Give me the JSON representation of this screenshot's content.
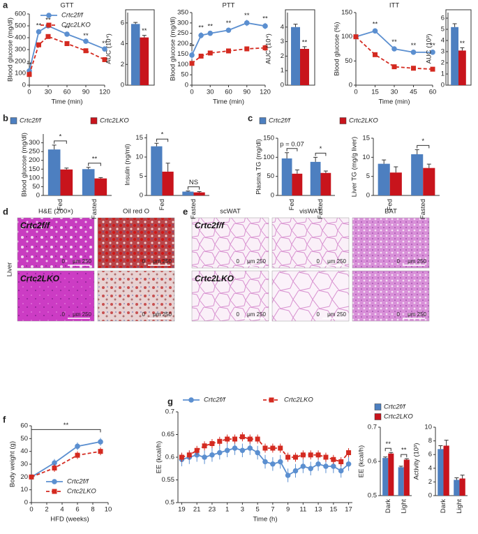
{
  "chart_data": [
    {
      "type": "line",
      "title": "GTT",
      "xlabel": "Time (min)",
      "ylabel": "Blood glucose (mg/dl)",
      "x": [
        0,
        15,
        30,
        60,
        90,
        120
      ],
      "xlim": [
        0,
        120
      ],
      "xticks": [
        0,
        30,
        60,
        90,
        120
      ],
      "ylim": [
        0,
        600
      ],
      "yticks": [
        0,
        100,
        200,
        300,
        400,
        500,
        600
      ],
      "legend": true,
      "series": [
        {
          "name": "Crtc2f/f",
          "color": "#5b8fd0",
          "linestyle": "solid",
          "marker": "circle",
          "values": [
            120,
            450,
            500,
            430,
            370,
            305
          ],
          "errors": [
            15,
            15,
            12,
            12,
            10,
            10
          ]
        },
        {
          "name": "Crtc2LKO",
          "color": "#d42a20",
          "linestyle": "dashed",
          "marker": "square",
          "values": [
            90,
            340,
            410,
            350,
            290,
            215
          ],
          "errors": [
            10,
            12,
            10,
            10,
            10,
            10
          ]
        }
      ],
      "significance": [
        "**",
        "**",
        "**",
        "**",
        "**",
        "**"
      ]
    },
    {
      "type": "bar",
      "ylabel": "AUC (10⁴)",
      "ylim": [
        0,
        7
      ],
      "yticks": [
        0,
        2,
        4,
        6
      ],
      "frame": true,
      "series": [
        {
          "name": "Crtc2f/f",
          "color": "#4d7fc0",
          "values": [
            5.9
          ],
          "errors": [
            0.15
          ]
        },
        {
          "name": "Crtc2LKO",
          "color": "#c8141c",
          "values": [
            4.6
          ],
          "errors": [
            0.2
          ]
        }
      ],
      "significance": [
        "**"
      ]
    },
    {
      "type": "line",
      "title": "PTT",
      "xlabel": "Time (min)",
      "ylabel": "Blood glucose (mg/dl)",
      "x": [
        0,
        15,
        30,
        60,
        90,
        120
      ],
      "xlim": [
        0,
        120
      ],
      "xticks": [
        0,
        30,
        60,
        90,
        120
      ],
      "ylim": [
        0,
        350
      ],
      "yticks": [
        0,
        50,
        100,
        150,
        200,
        250,
        300,
        350
      ],
      "series": [
        {
          "name": "Crtc2f/f",
          "color": "#5b8fd0",
          "linestyle": "solid",
          "marker": "circle",
          "values": [
            145,
            240,
            250,
            265,
            300,
            285
          ],
          "errors": [
            20,
            15,
            12,
            12,
            15,
            15
          ]
        },
        {
          "name": "Crtc2LKO",
          "color": "#d42a20",
          "linestyle": "dashed",
          "marker": "square",
          "values": [
            105,
            140,
            155,
            165,
            175,
            180
          ],
          "errors": [
            10,
            10,
            10,
            10,
            10,
            15
          ]
        }
      ],
      "significance": [
        "**",
        "**",
        "**",
        "**",
        "**",
        "**"
      ]
    },
    {
      "type": "bar",
      "ylabel": "AUC (10⁴)",
      "ylim": [
        0,
        5
      ],
      "yticks": [
        0,
        1,
        2,
        3,
        4
      ],
      "frame": true,
      "series": [
        {
          "name": "Crtc2f/f",
          "color": "#4d7fc0",
          "values": [
            4.0
          ],
          "errors": [
            0.2
          ]
        },
        {
          "name": "Crtc2LKO",
          "color": "#c8141c",
          "values": [
            2.5
          ],
          "errors": [
            0.15
          ]
        }
      ],
      "significance": [
        "**"
      ]
    },
    {
      "type": "line",
      "title": "ITT",
      "xlabel": "Time (min)",
      "ylabel": "Blood glucose (%)",
      "x": [
        0,
        15,
        30,
        45,
        60
      ],
      "xlim": [
        0,
        60
      ],
      "xticks": [
        0,
        15,
        30,
        45,
        60
      ],
      "ylim": [
        0,
        150
      ],
      "yticks": [
        0,
        50,
        100,
        150
      ],
      "series": [
        {
          "name": "Crtc2f/f",
          "color": "#5b8fd0",
          "linestyle": "solid",
          "marker": "circle",
          "values": [
            100,
            112,
            75,
            68,
            68
          ],
          "errors": [
            5,
            5,
            5,
            5,
            5
          ]
        },
        {
          "name": "Crtc2LKO",
          "color": "#d42a20",
          "linestyle": "dashed",
          "marker": "square",
          "values": [
            100,
            63,
            38,
            35,
            33
          ],
          "errors": [
            3,
            3,
            3,
            3,
            3
          ]
        }
      ],
      "significance": [
        null,
        "**",
        "**",
        "**",
        "**"
      ]
    },
    {
      "type": "bar",
      "ylabel": "AUC (10³)",
      "ylim": [
        0,
        6.5
      ],
      "yticks": [
        0,
        1,
        2,
        3,
        4,
        5,
        6
      ],
      "frame": true,
      "series": [
        {
          "name": "Crtc2f/f",
          "color": "#4d7fc0",
          "values": [
            5.2
          ],
          "errors": [
            0.3
          ]
        },
        {
          "name": "Crtc2LKO",
          "color": "#c8141c",
          "values": [
            3.1
          ],
          "errors": [
            0.25
          ]
        }
      ],
      "significance": [
        "**"
      ]
    },
    {
      "type": "bar",
      "ylabel": "Blood glucose (mg/dl)",
      "categories": [
        "Fed",
        "Fasted"
      ],
      "legend": true,
      "ylim": [
        0,
        350
      ],
      "yticks": [
        0,
        50,
        100,
        150,
        200,
        250,
        300
      ],
      "series": [
        {
          "name": "Crtc2f/f",
          "color": "#4d7fc0",
          "values": [
            262,
            150
          ],
          "errors": [
            25,
            10
          ]
        },
        {
          "name": "Crtc2LKO",
          "color": "#c8141c",
          "values": [
            148,
            97
          ],
          "errors": [
            8,
            5
          ]
        }
      ],
      "significance": [
        "*",
        "**"
      ]
    },
    {
      "type": "bar",
      "ylabel": "Insulin (ng/ml)",
      "categories": [
        "Fed",
        "Fasted"
      ],
      "ylim": [
        0,
        16
      ],
      "yticks": [
        0,
        5,
        10,
        15
      ],
      "series": [
        {
          "name": "Crtc2f/f",
          "color": "#4d7fc0",
          "values": [
            12.8,
            1.0
          ],
          "errors": [
            0.8,
            0.15
          ]
        },
        {
          "name": "Crtc2LKO",
          "color": "#c8141c",
          "values": [
            6.2,
            0.8
          ],
          "errors": [
            2.2,
            0.2
          ]
        }
      ],
      "significance": [
        "*",
        "NS"
      ]
    },
    {
      "type": "bar",
      "ylabel": "Plasma TG (mg/dl)",
      "categories": [
        "Fed",
        "Fasted"
      ],
      "legend": true,
      "ylim": [
        0,
        150
      ],
      "yticks": [
        0,
        50,
        100,
        150
      ],
      "series": [
        {
          "name": "Crtc2f/f",
          "color": "#4d7fc0",
          "values": [
            97,
            88
          ],
          "errors": [
            15,
            12
          ]
        },
        {
          "name": "Crtc2LKO",
          "color": "#c8141c",
          "values": [
            57,
            59
          ],
          "errors": [
            10,
            5
          ]
        }
      ],
      "significance": [
        "p = 0.07",
        "*"
      ]
    },
    {
      "type": "bar",
      "ylabel": "Liver TG (mg/g liver)",
      "categories": [
        "Fed",
        "Fasted"
      ],
      "ylim": [
        0,
        15
      ],
      "yticks": [
        0,
        5,
        10,
        15
      ],
      "series": [
        {
          "name": "Crtc2f/f",
          "color": "#4d7fc0",
          "values": [
            8.3,
            10.8
          ],
          "errors": [
            1,
            1.2
          ]
        },
        {
          "name": "Crtc2LKO",
          "color": "#c8141c",
          "values": [
            6,
            7.2
          ],
          "errors": [
            1.5,
            1
          ]
        }
      ],
      "significance": [
        null,
        "*"
      ]
    },
    {
      "type": "line",
      "xlabel": "HFD (weeks)",
      "ylabel": "Body weight (g)",
      "legend": true,
      "x": [
        0,
        3,
        6,
        9
      ],
      "xlim": [
        0,
        10
      ],
      "xticks": [
        0,
        2,
        4,
        6,
        8,
        10
      ],
      "ylim": [
        0,
        60
      ],
      "yticks": [
        0,
        10,
        20,
        30,
        40,
        50,
        60
      ],
      "annotation": "**",
      "series": [
        {
          "name": "Crtc2f/f",
          "color": "#5b8fd0",
          "linestyle": "solid",
          "marker": "circle",
          "values": [
            20,
            31,
            44,
            47.5
          ],
          "errors": [
            1,
            3,
            3,
            3
          ]
        },
        {
          "name": "Crtc2LKO",
          "color": "#d42a20",
          "linestyle": "dashed",
          "marker": "square",
          "values": [
            20,
            27,
            37,
            40
          ],
          "errors": [
            1,
            3,
            3,
            3
          ]
        }
      ]
    },
    {
      "type": "line",
      "xlabel": "Time (h)",
      "ylabel": "EE (kcal/h)",
      "legend": true,
      "categories": [
        "19",
        null,
        "21",
        null,
        "23",
        null,
        "1",
        null,
        "3",
        null,
        "5",
        null,
        "7",
        null,
        "9",
        null,
        "11",
        null,
        "13",
        null,
        "15",
        null,
        "17"
      ],
      "ylim": [
        0.5,
        0.7
      ],
      "yticks": [
        0.5,
        0.55,
        0.6,
        0.65,
        0.7
      ],
      "series": [
        {
          "name": "Crtc2f/f",
          "color": "#5b8fd0",
          "linestyle": "solid",
          "marker": "circle",
          "values": [
            0.595,
            0.6,
            0.605,
            0.6,
            0.605,
            0.61,
            0.615,
            0.62,
            0.615,
            0.62,
            0.61,
            0.59,
            0.585,
            0.59,
            0.56,
            0.57,
            0.58,
            0.575,
            0.585,
            0.58,
            0.58,
            0.57,
            0.585
          ],
          "errors": [
            0.015,
            0.015,
            0.015,
            0.015,
            0.015,
            0.015,
            0.015,
            0.015,
            0.015,
            0.015,
            0.015,
            0.015,
            0.015,
            0.015,
            0.015,
            0.015,
            0.015,
            0.015,
            0.015,
            0.015,
            0.015,
            0.015,
            0.015
          ]
        },
        {
          "name": "Crtc2LKO",
          "color": "#d42a20",
          "linestyle": "dashed",
          "marker": "square",
          "values": [
            0.6,
            0.605,
            0.615,
            0.625,
            0.63,
            0.635,
            0.64,
            0.64,
            0.645,
            0.64,
            0.64,
            0.62,
            0.62,
            0.62,
            0.6,
            0.6,
            0.605,
            0.605,
            0.605,
            0.6,
            0.595,
            0.59,
            0.61
          ],
          "errors": [
            0.01,
            0.01,
            0.01,
            0.01,
            0.01,
            0.01,
            0.01,
            0.01,
            0.01,
            0.01,
            0.01,
            0.01,
            0.01,
            0.01,
            0.01,
            0.01,
            0.01,
            0.01,
            0.01,
            0.01,
            0.01,
            0.01,
            0.01
          ]
        }
      ]
    },
    {
      "type": "bar",
      "ylabel": "EE (kcal/h)",
      "categories": [
        "Dark",
        "Light"
      ],
      "legend": true,
      "ylim": [
        0.5,
        0.7
      ],
      "yticks": [
        0.5,
        0.6,
        0.7
      ],
      "series": [
        {
          "name": "Crtc2f/f",
          "color": "#4d7fc0",
          "values": [
            0.61,
            0.583
          ],
          "errors": [
            0.003,
            0.003
          ]
        },
        {
          "name": "Crtc2LKO",
          "color": "#c8141c",
          "values": [
            0.623,
            0.605
          ],
          "errors": [
            0.003,
            0.003
          ]
        }
      ],
      "significance": [
        "**",
        "**"
      ]
    },
    {
      "type": "bar",
      "ylabel": "Activity (10³)",
      "categories": [
        "Dark",
        "Light"
      ],
      "ylim": [
        0,
        10
      ],
      "yticks": [
        0,
        2,
        4,
        6,
        8,
        10
      ],
      "series": [
        {
          "name": "Crtc2f/f",
          "color": "#4d7fc0",
          "values": [
            6.8,
            2.3
          ],
          "errors": [
            0.5,
            0.3
          ]
        },
        {
          "name": "Crtc2LKO",
          "color": "#c8141c",
          "values": [
            7.3,
            2.5
          ],
          "errors": [
            0.8,
            0.5
          ]
        }
      ]
    }
  ],
  "panels": [
    "a",
    "b",
    "c",
    "d",
    "e",
    "f",
    "g"
  ],
  "histology": {
    "d": {
      "columns": [
        "H&E (200×)",
        "Oil red O"
      ],
      "rows": [
        "Crtc2f/f",
        "Crtc2LKO"
      ],
      "side_label": "Liver"
    },
    "e": {
      "columns": [
        "scWAT",
        "visWAT",
        "BAT"
      ],
      "rows": [
        "Crtc2f/f",
        "Crtc2LKO"
      ]
    },
    "scale": [
      "0",
      "μm 250"
    ]
  }
}
